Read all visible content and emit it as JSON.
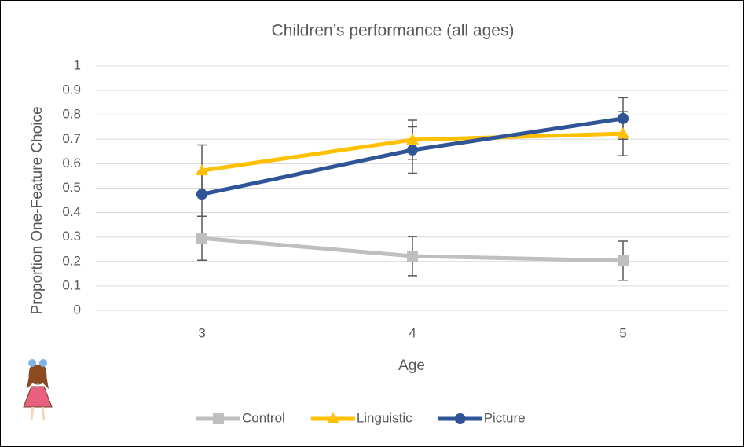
{
  "chart_data": {
    "type": "line",
    "title": "Children’s performance (all ages)",
    "x_label": "Age",
    "y_label": "Proportion One-Feature Choice",
    "categories": [
      "3",
      "4",
      "5"
    ],
    "series": [
      {
        "name": "Control",
        "color": "#bfbfbf",
        "marker": "square",
        "values": [
          0.295,
          0.222,
          0.203
        ],
        "errors": [
          0.09,
          0.08,
          0.08
        ]
      },
      {
        "name": "Linguistic",
        "color": "#ffc000",
        "marker": "triangle",
        "values": [
          0.572,
          0.698,
          0.723
        ],
        "errors": [
          0.105,
          0.08,
          0.09
        ]
      },
      {
        "name": "Picture",
        "color": "#2f5597",
        "marker": "circle",
        "values": [
          0.475,
          0.656,
          0.785
        ],
        "errors": [
          0.09,
          0.095,
          0.085
        ]
      }
    ],
    "error_color": "#595959",
    "ylim": [
      0,
      1
    ],
    "yticks": [
      0,
      0.1,
      0.2,
      0.3,
      0.4,
      0.5,
      0.6,
      0.7,
      0.8,
      0.9,
      1
    ],
    "grid": true,
    "legend": "bottom"
  }
}
